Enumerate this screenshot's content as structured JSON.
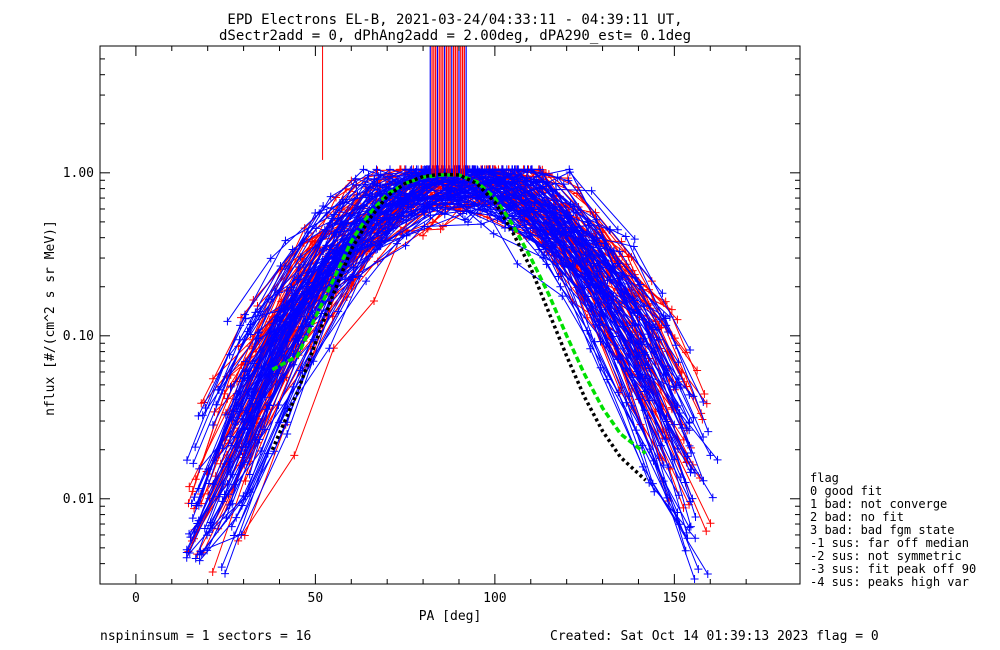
{
  "chart_data": {
    "type": "line",
    "title_line1": "EPD Electrons EL-B, 2021-03-24/04:33:11 - 04:39:11 UT,",
    "title_line2": "dSectr2add = 0, dPhAng2add = 2.00deg, dPA290_est=   0.1deg",
    "xlabel": "PA [deg]",
    "ylabel": "nflux [#/(cm^2 s sr MeV)]",
    "xlim": [
      -10,
      185
    ],
    "ylim": [
      0.003,
      6.0
    ],
    "yscale": "log",
    "x_ticks": [
      0,
      50,
      100,
      150
    ],
    "y_ticks": [
      {
        "value": 0.01,
        "label": "0.01"
      },
      {
        "value": 0.1,
        "label": "0.10"
      },
      {
        "value": 1.0,
        "label": "1.00"
      }
    ],
    "colors": {
      "red": "#ff0000",
      "blue": "#0000ff",
      "green": "#00e000",
      "black": "#000000"
    },
    "series": [
      {
        "color": "green",
        "style": "dashed-thick",
        "x": [
          38,
          45,
          50,
          55,
          60,
          65,
          70,
          75,
          80,
          85,
          90,
          95,
          100,
          105,
          110,
          115,
          120,
          125,
          130,
          135,
          142
        ],
        "y": [
          0.062,
          0.075,
          0.13,
          0.22,
          0.38,
          0.56,
          0.74,
          0.86,
          0.94,
          0.97,
          0.97,
          0.88,
          0.7,
          0.48,
          0.3,
          0.18,
          0.1,
          0.058,
          0.036,
          0.025,
          0.019
        ]
      },
      {
        "color": "black",
        "style": "dotted-thick",
        "x": [
          38,
          45,
          50,
          55,
          60,
          65,
          70,
          75,
          80,
          85,
          90,
          95,
          100,
          105,
          110,
          115,
          120,
          125,
          130,
          135,
          142
        ],
        "y": [
          0.02,
          0.045,
          0.09,
          0.18,
          0.34,
          0.52,
          0.72,
          0.86,
          0.95,
          0.98,
          0.97,
          0.86,
          0.66,
          0.43,
          0.26,
          0.14,
          0.075,
          0.042,
          0.026,
          0.018,
          0.013
        ]
      }
    ],
    "legend": {
      "position": "right",
      "title": "flag",
      "entries": [
        " 0 good fit",
        " 1 bad: not converge",
        " 2 bad: no fit",
        " 3 bad: bad fgm state",
        "-1 sus: far off median",
        "-2 sus: not symmetric",
        "-3 sus: fit peak off 90",
        "-4 sus: peaks high var"
      ]
    },
    "footer_left": "nspininsum =  1  sectors = 16",
    "footer_right": "Created: Sat Oct 14 01:39:13 2023   flag = 0"
  }
}
